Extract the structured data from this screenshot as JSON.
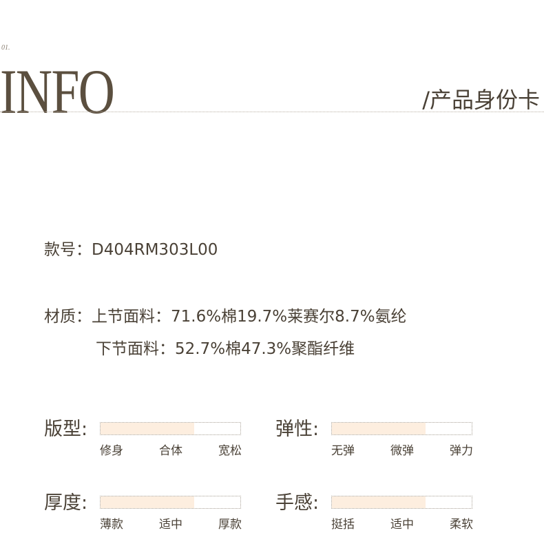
{
  "header": {
    "number": "01.",
    "title": "INFO",
    "subtitle": "/产品身份卡"
  },
  "style_no": {
    "label": "款号：",
    "value": "D404RM303L00"
  },
  "material": {
    "label": "材质：",
    "upper": "上节面料：71.6%棉19.7%莱赛尔8.7%氨纶",
    "lower": "下节面料：52.7%棉47.3%聚酯纤维"
  },
  "ratings": [
    {
      "label": "版型:",
      "level_percent": 67,
      "ticks": [
        "修身",
        "合体",
        "宽松"
      ]
    },
    {
      "label": "弹性:",
      "level_percent": 67,
      "ticks": [
        "无弹",
        "微弹",
        "弹力"
      ]
    },
    {
      "label": "厚度:",
      "level_percent": 67,
      "ticks": [
        "薄款",
        "适中",
        "厚款"
      ]
    },
    {
      "label": "手感:",
      "level_percent": 67,
      "ticks": [
        "挺括",
        "适中",
        "柔软"
      ]
    }
  ],
  "colors": {
    "fill": "#fdeedf",
    "text": "#4a4136",
    "title": "#5b4f3f"
  }
}
